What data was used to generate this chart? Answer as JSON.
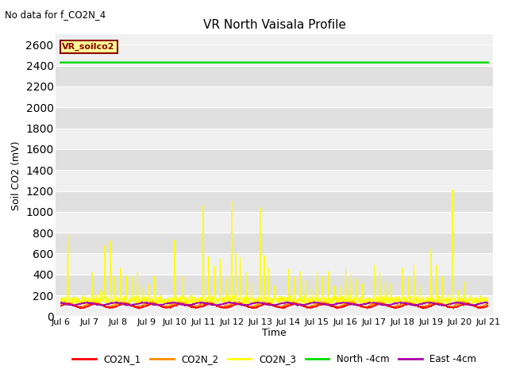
{
  "title": "VR North Vaisala Profile",
  "no_data_text": "No data for f_CO2N_4",
  "ylabel": "Soil CO2 (mV)",
  "xlabel": "Time",
  "legend_label": "VR_soilco2",
  "xlim_days": [
    5.83,
    21.17
  ],
  "ylim": [
    0,
    2700
  ],
  "yticks": [
    0,
    200,
    400,
    600,
    800,
    1000,
    1200,
    1400,
    1600,
    1800,
    2000,
    2200,
    2400,
    2600
  ],
  "xtick_labels": [
    "Jul 6",
    "Jul 7",
    "Jul 8",
    "Jul 9",
    "Jul 10",
    "Jul 11",
    "Jul 12",
    "Jul 13",
    "Jul 14",
    "Jul 15",
    "Jul 16",
    "Jul 17",
    "Jul 18",
    "Jul 19",
    "Jul 20",
    "Jul 21"
  ],
  "xtick_positions": [
    6,
    7,
    8,
    9,
    10,
    11,
    12,
    13,
    14,
    15,
    16,
    17,
    18,
    19,
    20,
    21
  ],
  "north_line_value": 2430,
  "colors": {
    "CO2N_1": "#ff0000",
    "CO2N_2": "#ff8c00",
    "CO2N_3": "#ffff00",
    "North": "#00dd00",
    "East": "#aa00aa",
    "background_light": "#f0f0f0",
    "background_dark": "#e0e0e0",
    "legend_box_fill": "#ffff99",
    "legend_box_edge": "#8b0000"
  },
  "legend_entries": [
    {
      "label": "CO2N_1",
      "color": "#ff0000"
    },
    {
      "label": "CO2N_2",
      "color": "#ff8c00"
    },
    {
      "label": "CO2N_3",
      "color": "#ffff00"
    },
    {
      "label": "North -4cm",
      "color": "#00dd00"
    },
    {
      "label": "East -4cm",
      "color": "#aa00aa"
    }
  ],
  "spike_positions": [
    [
      6.25,
      780
    ],
    [
      6.45,
      200
    ],
    [
      7.1,
      420
    ],
    [
      7.4,
      250
    ],
    [
      7.55,
      680
    ],
    [
      7.75,
      720
    ],
    [
      7.9,
      380
    ],
    [
      8.1,
      460
    ],
    [
      8.3,
      390
    ],
    [
      8.5,
      380
    ],
    [
      8.7,
      420
    ],
    [
      8.9,
      290
    ],
    [
      9.1,
      310
    ],
    [
      9.3,
      380
    ],
    [
      9.5,
      200
    ],
    [
      10.0,
      730
    ],
    [
      10.3,
      380
    ],
    [
      10.6,
      220
    ],
    [
      11.0,
      1060
    ],
    [
      11.2,
      570
    ],
    [
      11.4,
      480
    ],
    [
      11.6,
      550
    ],
    [
      11.8,
      380
    ],
    [
      12.0,
      1100
    ],
    [
      12.15,
      600
    ],
    [
      12.3,
      560
    ],
    [
      12.5,
      420
    ],
    [
      12.7,
      320
    ],
    [
      13.0,
      1040
    ],
    [
      13.15,
      580
    ],
    [
      13.3,
      460
    ],
    [
      13.5,
      290
    ],
    [
      14.0,
      450
    ],
    [
      14.2,
      380
    ],
    [
      14.4,
      430
    ],
    [
      14.6,
      340
    ],
    [
      14.8,
      280
    ],
    [
      15.0,
      430
    ],
    [
      15.2,
      380
    ],
    [
      15.4,
      430
    ],
    [
      15.6,
      290
    ],
    [
      15.8,
      280
    ],
    [
      16.0,
      460
    ],
    [
      16.2,
      400
    ],
    [
      16.4,
      360
    ],
    [
      16.6,
      310
    ],
    [
      17.0,
      490
    ],
    [
      17.2,
      420
    ],
    [
      17.4,
      360
    ],
    [
      17.6,
      310
    ],
    [
      18.0,
      460
    ],
    [
      18.2,
      380
    ],
    [
      18.4,
      490
    ],
    [
      18.6,
      310
    ],
    [
      19.0,
      640
    ],
    [
      19.2,
      490
    ],
    [
      19.4,
      380
    ],
    [
      19.75,
      1210
    ],
    [
      19.95,
      250
    ],
    [
      20.2,
      330
    ],
    [
      20.4,
      200
    ]
  ]
}
